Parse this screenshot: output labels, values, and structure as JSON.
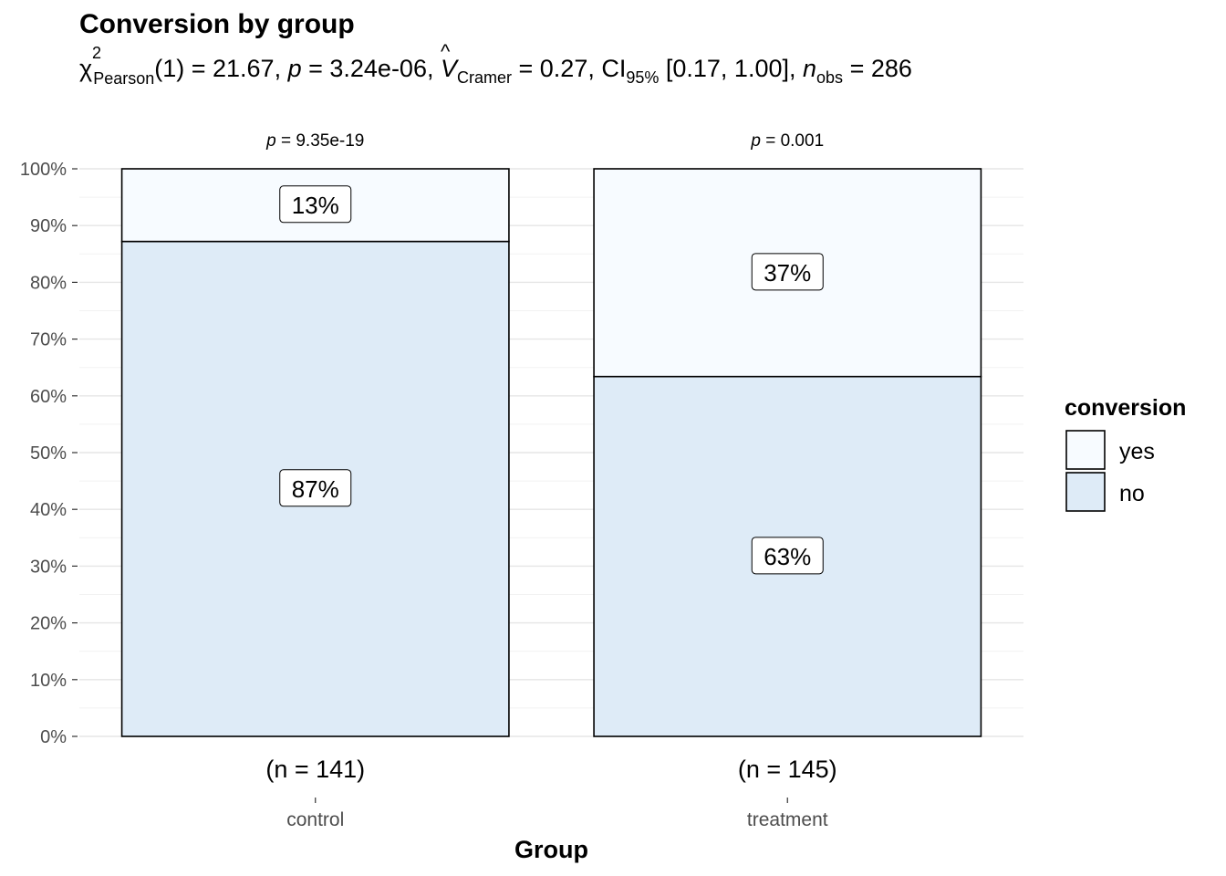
{
  "chart_data": {
    "type": "bar",
    "stacked": true,
    "title": "Conversion by group",
    "subtitle": {
      "chi_symbol": "χ",
      "chi_sup": "2",
      "chi_sub": "Pearson",
      "chi_value": "(1) = 21.67, ",
      "p_symbol": "p",
      "p_value": " = 3.24e-06, ",
      "v_symbol": "V",
      "v_sub": "Cramer",
      "v_value": " = 0.27, CI",
      "ci_sub": "95%",
      "ci_value": " [0.17, 1.00], ",
      "n_symbol": "n",
      "n_sub": "obs",
      "n_value": " = 286"
    },
    "xlabel": "Group",
    "ylabel": "",
    "ylim": [
      0,
      100
    ],
    "y_ticks": [
      "0%",
      "10%",
      "20%",
      "30%",
      "40%",
      "50%",
      "60%",
      "70%",
      "80%",
      "90%",
      "100%"
    ],
    "categories": [
      "control",
      "treatment"
    ],
    "sample_sizes": [
      "(n = 141)",
      "(n = 145)"
    ],
    "group_p_values": [
      "p = 9.35e-19",
      "p = 0.001"
    ],
    "series": [
      {
        "name": "no",
        "values": [
          87.2,
          63.4
        ],
        "labels": [
          "87%",
          "63%"
        ],
        "color": "#DEEBF7"
      },
      {
        "name": "yes",
        "values": [
          12.8,
          36.6
        ],
        "labels": [
          "13%",
          "37%"
        ],
        "color": "#F7FBFF"
      }
    ],
    "legend": {
      "title": "conversion",
      "entries": [
        "yes",
        "no"
      ],
      "position": "right"
    },
    "grid": true
  }
}
